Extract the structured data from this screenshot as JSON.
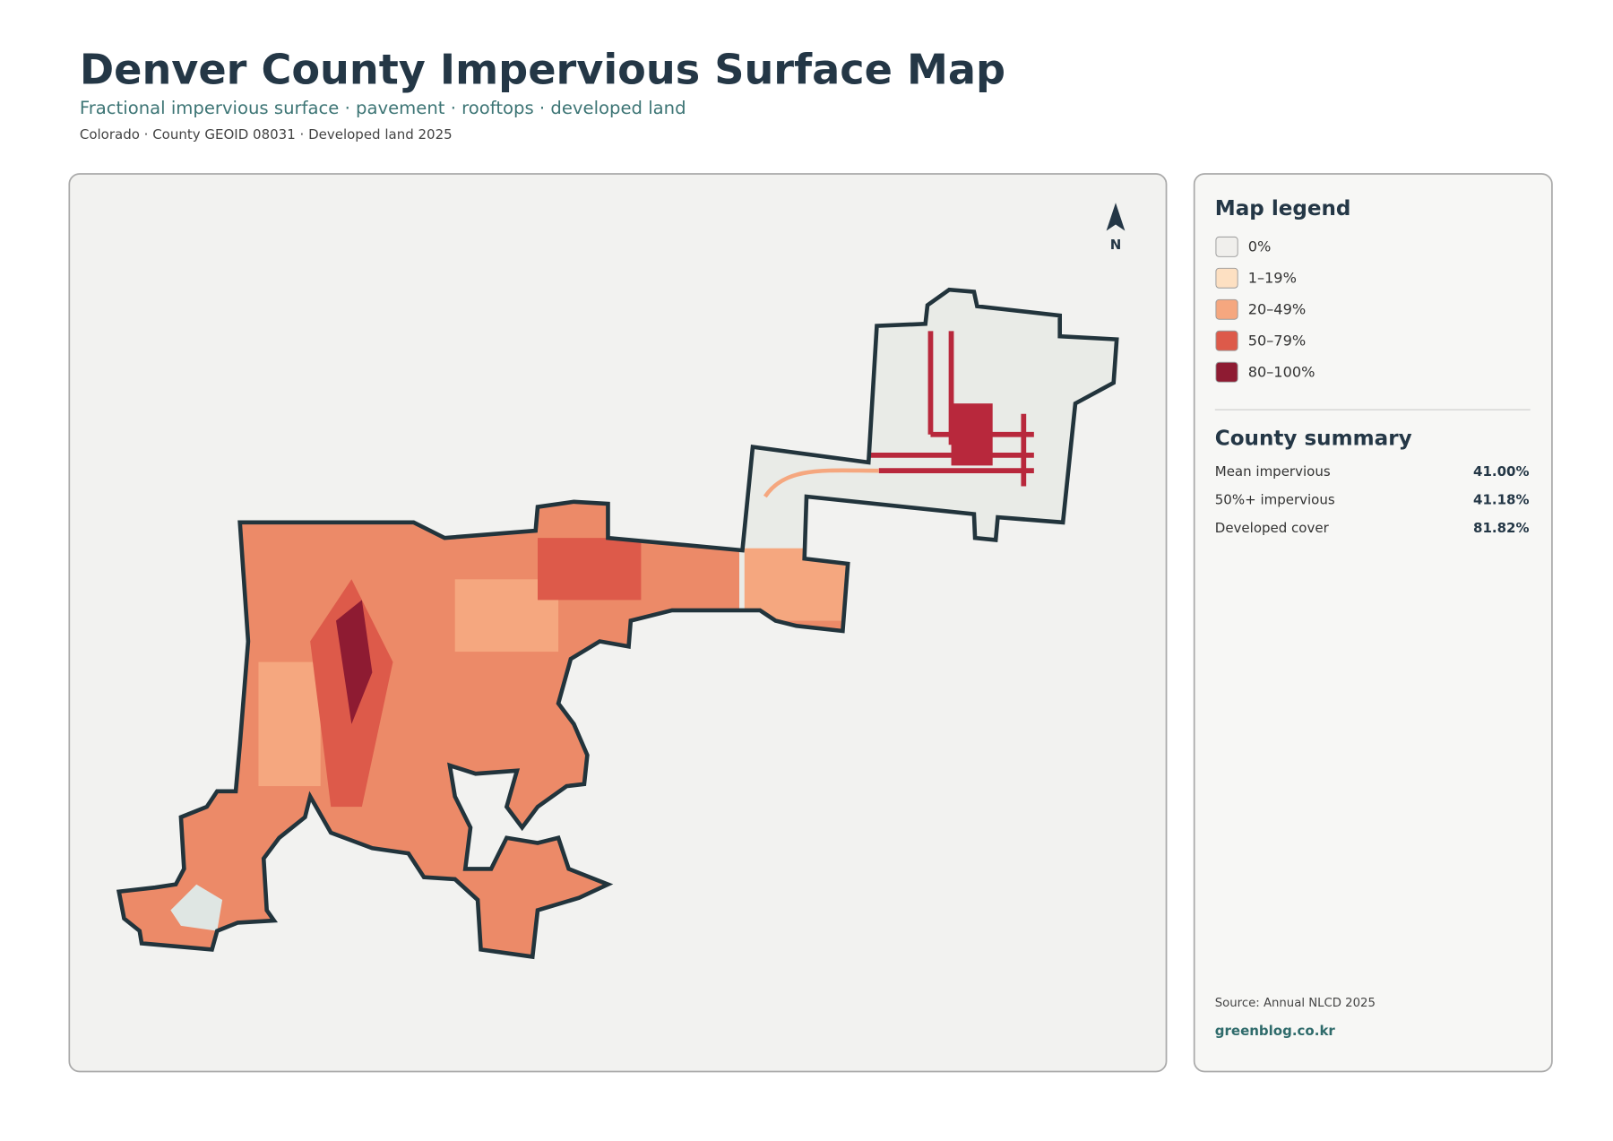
{
  "header": {
    "title": "Denver County Impervious Surface Map",
    "subtitle": "Fractional impervious surface · pavement · rooftops · developed land",
    "meta": "Colorado · County GEOID 08031 · Developed land 2025"
  },
  "north": "N",
  "legend": {
    "title": "Map legend",
    "items": [
      {
        "label": "0%",
        "color": "#f0efec"
      },
      {
        "label": "1–19%",
        "color": "#fde0c2"
      },
      {
        "label": "20–49%",
        "color": "#f5a77f"
      },
      {
        "label": "50–79%",
        "color": "#dd5a4a"
      },
      {
        "label": "80–100%",
        "color": "#8e1b32"
      }
    ]
  },
  "summary": {
    "title": "County summary",
    "rows": [
      {
        "label": "Mean impervious",
        "value": "41.00%"
      },
      {
        "label": "50%+ impervious",
        "value": "41.18%"
      },
      {
        "label": "Developed cover",
        "value": "81.82%"
      }
    ]
  },
  "source": "Source: Annual NLCD 2025",
  "site": "greenblog.co.kr"
}
